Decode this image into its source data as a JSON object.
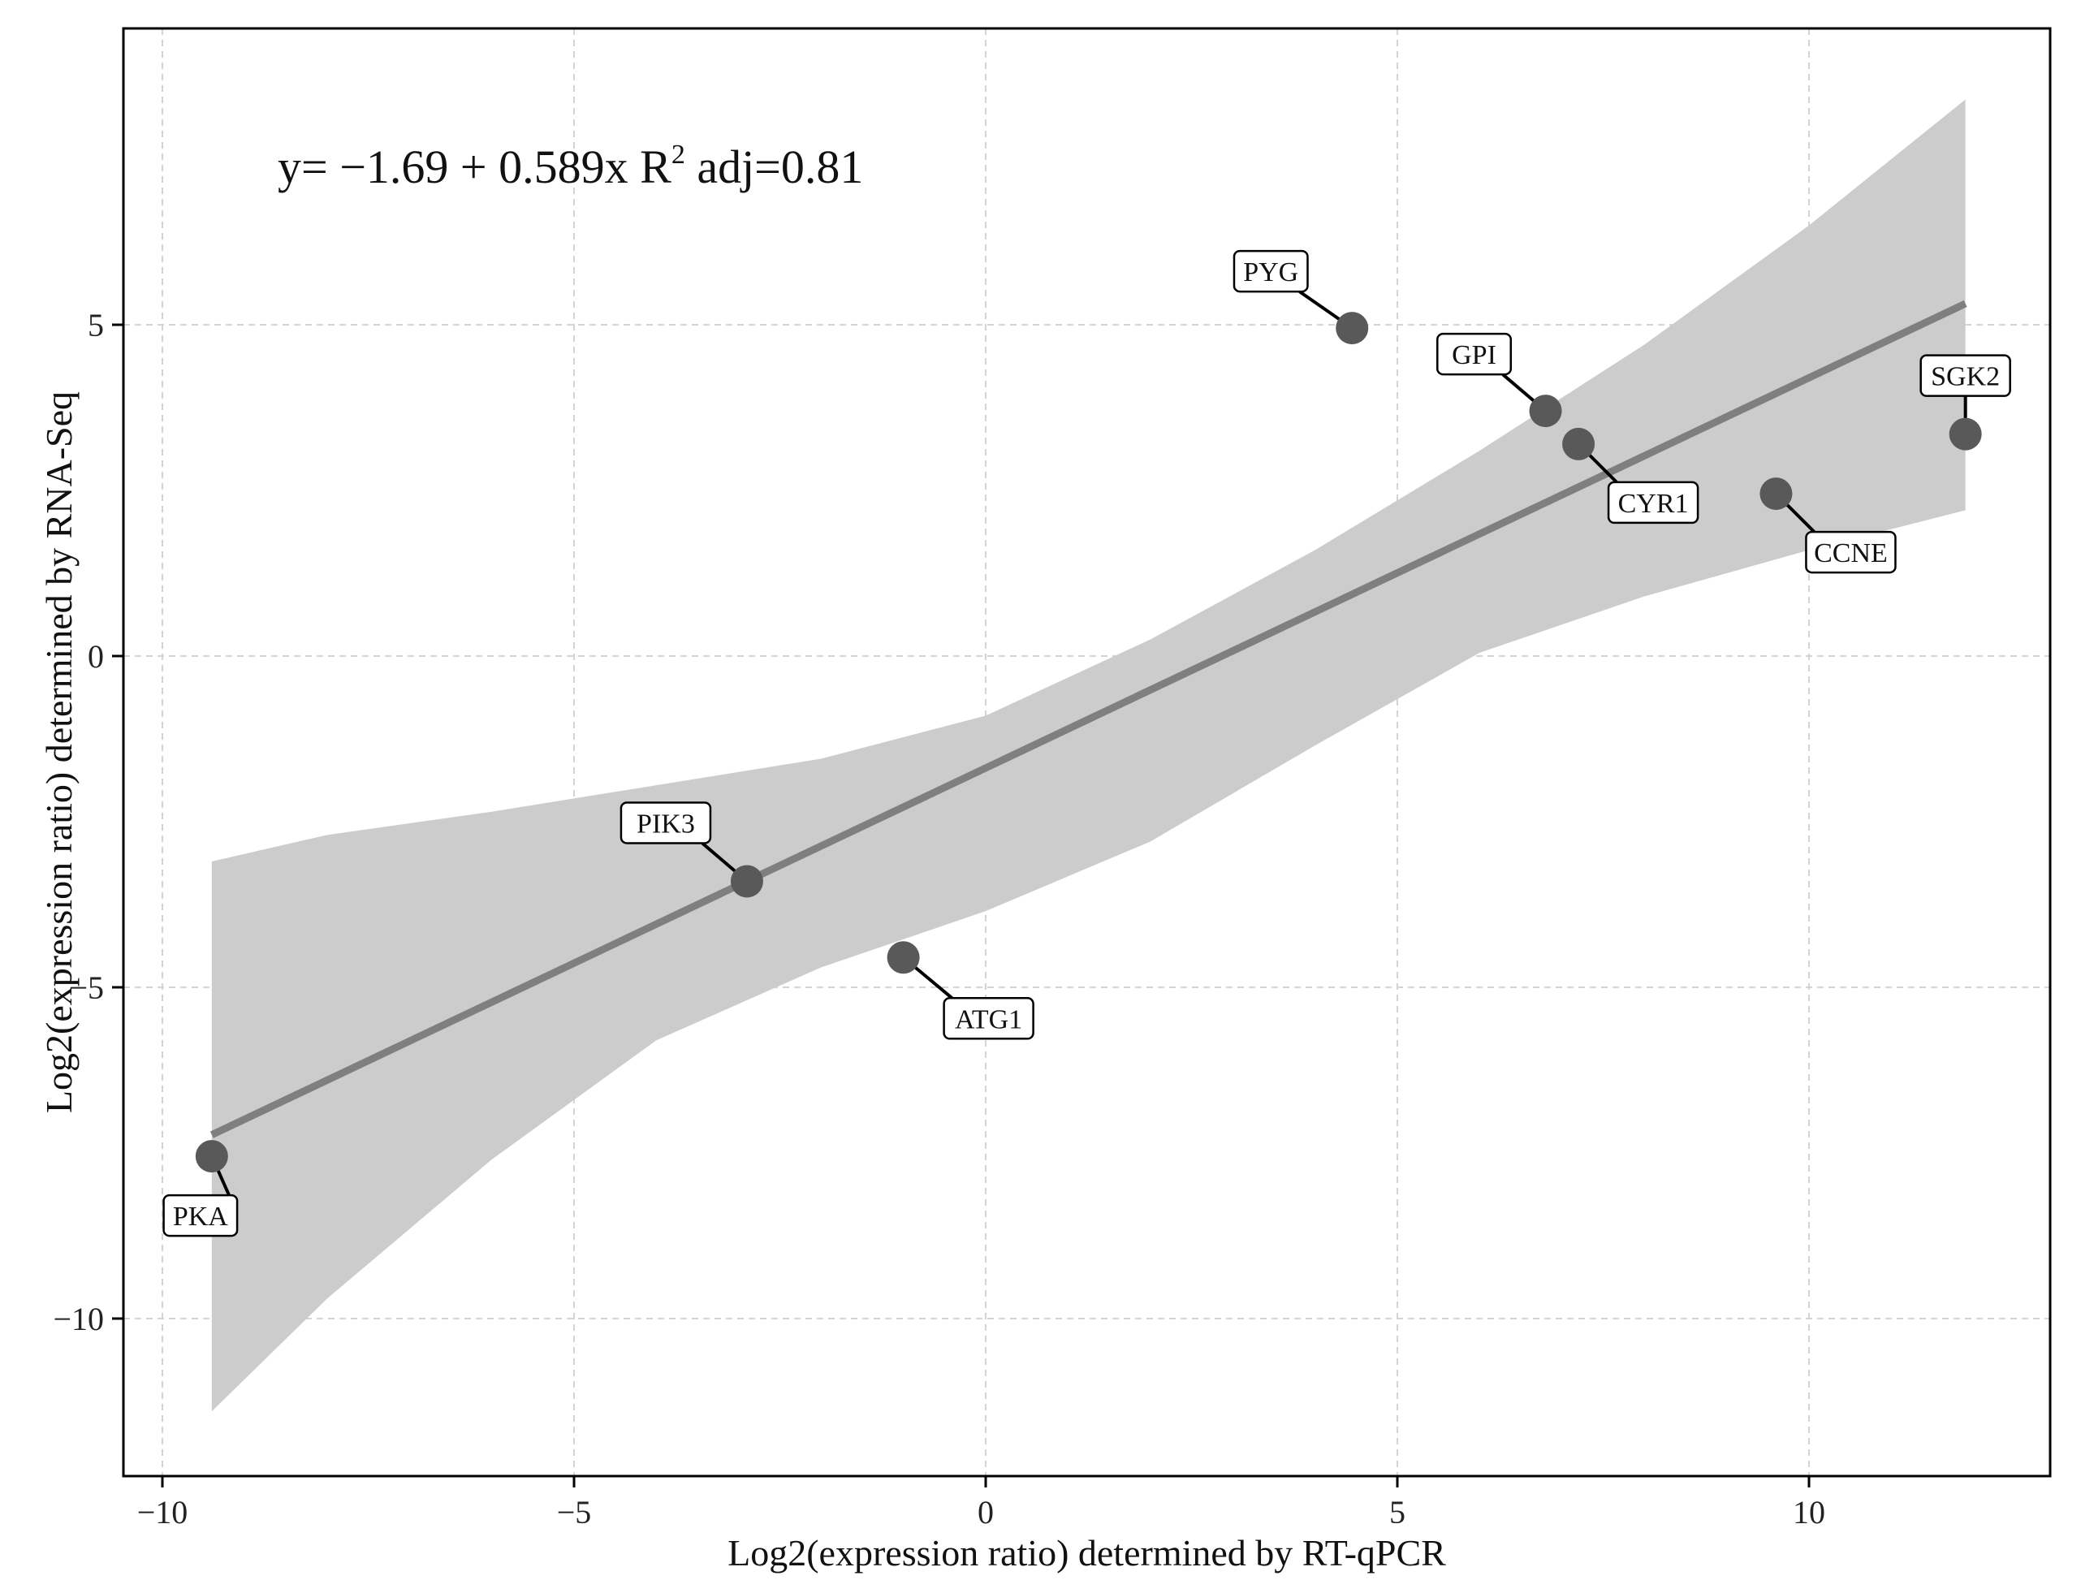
{
  "chart_data": {
    "type": "scatter",
    "xlabel": "Log2(expression ratio) determined by RT-qPCR",
    "ylabel": "Log2(expression ratio) determined by RNA-Seq",
    "xlim": [
      -10.5,
      13
    ],
    "ylim": [
      -12.3,
      9.5
    ],
    "x_ticks": [
      -10,
      -5,
      0,
      5,
      10
    ],
    "y_ticks": [
      -10,
      -5,
      0,
      5
    ],
    "x_tick_labels": [
      "−10",
      "−5",
      "0",
      "5",
      "10"
    ],
    "y_tick_labels": [
      "−10",
      "−5",
      "0",
      "5"
    ],
    "grid": true,
    "equation": {
      "prefix": "y= −1.69 + 0.589x  R",
      "superscript": "2",
      "suffix": " adj=0.81"
    },
    "fit": {
      "intercept": -1.69,
      "slope": 0.589,
      "x_range": [
        -9.4,
        11.9
      ],
      "color": "#7f7f7f"
    },
    "confidence_band": {
      "x": [
        -9.4,
        -8,
        -6,
        -4,
        -2,
        0,
        2,
        4,
        6,
        8,
        10,
        11.9
      ],
      "upper": [
        -3.1,
        -2.7,
        -2.35,
        -1.95,
        -1.55,
        -0.9,
        0.25,
        1.6,
        3.1,
        4.7,
        6.5,
        8.4
      ],
      "lower": [
        -11.4,
        -9.7,
        -7.6,
        -5.8,
        -4.7,
        -3.85,
        -2.8,
        -1.35,
        0.05,
        0.9,
        1.6,
        2.2
      ],
      "color": "#cccccc"
    },
    "point_color": "#595959",
    "points": [
      {
        "label": "PYG",
        "x": 4.45,
        "y": 4.95
      },
      {
        "label": "GPI",
        "x": 6.8,
        "y": 3.7
      },
      {
        "label": "CYR1",
        "x": 7.2,
        "y": 3.2
      },
      {
        "label": "CCNE",
        "x": 9.6,
        "y": 2.45
      },
      {
        "label": "SGK2",
        "x": 11.9,
        "y": 3.35
      },
      {
        "label": "PIK3",
        "x": -2.9,
        "y": -3.4
      },
      {
        "label": "ATG1",
        "x": -1.0,
        "y": -4.55
      },
      {
        "label": "PKA",
        "x": -9.4,
        "y": -7.55
      }
    ]
  }
}
